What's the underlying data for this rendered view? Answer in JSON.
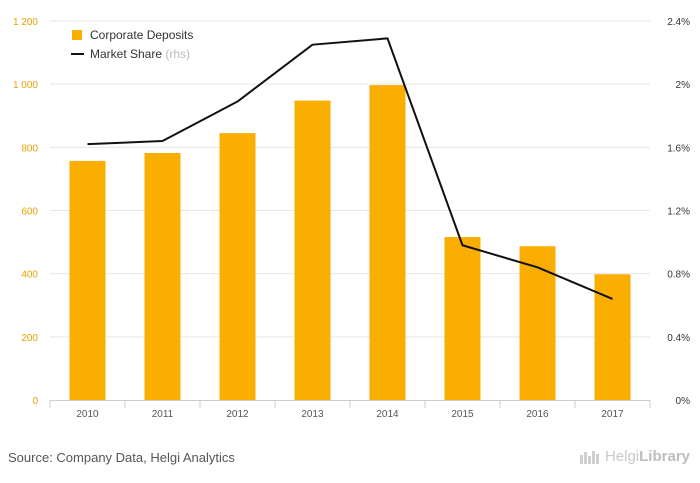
{
  "chart_data": {
    "type": "bar",
    "categories": [
      "2010",
      "2011",
      "2012",
      "2013",
      "2014",
      "2015",
      "2016",
      "2017"
    ],
    "series": [
      {
        "name": "Corporate Deposits",
        "type": "bar",
        "axis": "left",
        "color": "#f9ae00",
        "values": [
          757,
          782,
          845,
          948,
          997,
          516,
          487,
          398
        ]
      },
      {
        "name": "Market Share",
        "legend_suffix": "(rhs)",
        "type": "line",
        "axis": "right",
        "color": "#111111",
        "values": [
          1.62,
          1.64,
          1.89,
          2.25,
          2.29,
          0.98,
          0.84,
          0.64
        ]
      }
    ],
    "y_left": {
      "ylim": [
        0,
        1200
      ],
      "ticks": [
        "0",
        "200",
        "400",
        "600",
        "800",
        "1 000",
        "1 200"
      ]
    },
    "y_right": {
      "ylim": [
        0,
        2.4
      ],
      "ticks": [
        "0%",
        "0.4%",
        "0.8%",
        "1.2%",
        "1.6%",
        "2%",
        "2.4%"
      ]
    },
    "legend_position": "top-left",
    "grid": "horizontal"
  },
  "footer": {
    "source": "Source: Company Data, Helgi Analytics",
    "brand_prefix": "Helgi",
    "brand_suffix": "Library"
  }
}
